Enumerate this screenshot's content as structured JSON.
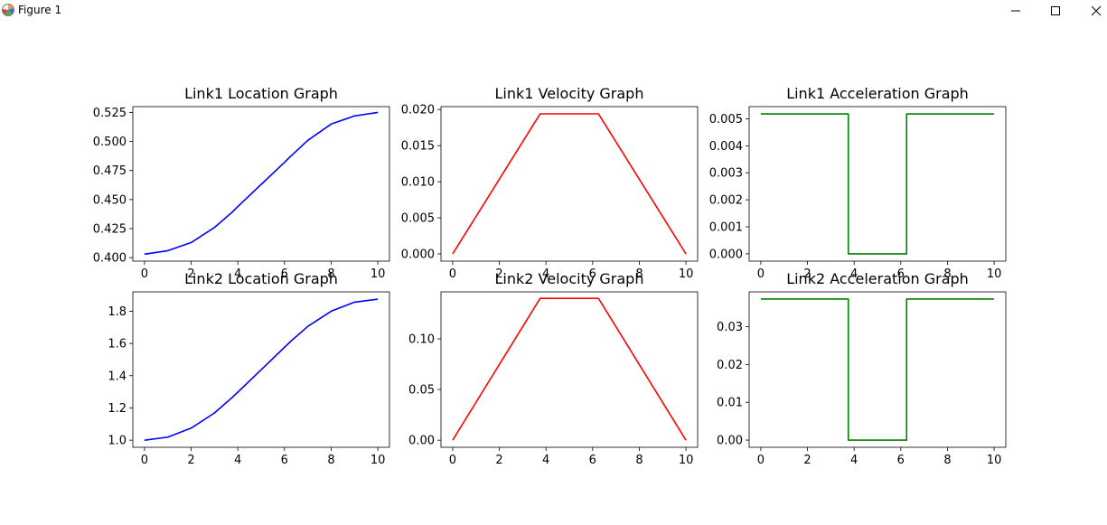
{
  "window": {
    "title": "Figure 1",
    "icons": [
      "matplotlib-icon",
      "minimize-icon",
      "maximize-icon",
      "close-icon"
    ]
  },
  "colors": {
    "blue": "#0000ff",
    "red": "#ff0000",
    "green": "#008000"
  },
  "chart_data": [
    {
      "type": "line",
      "title": "Link1 Location Graph",
      "color": "#0000ff",
      "xlim": [
        -0.5,
        10.5
      ],
      "ylim": [
        0.397,
        0.53
      ],
      "xticks": [
        0,
        2,
        4,
        6,
        8,
        10
      ],
      "yticks": [
        0.4,
        0.425,
        0.45,
        0.475,
        0.5,
        0.525
      ],
      "ytick_labels": [
        "0.400",
        "0.425",
        "0.450",
        "0.475",
        "0.500",
        "0.525"
      ],
      "x": [
        0,
        1,
        2,
        3,
        3.75,
        4,
        5,
        6,
        6.25,
        7,
        8,
        9,
        10
      ],
      "y": [
        0.403,
        0.406,
        0.413,
        0.426,
        0.439,
        0.444,
        0.463,
        0.482,
        0.487,
        0.501,
        0.515,
        0.522,
        0.525
      ]
    },
    {
      "type": "line",
      "title": "Link1 Velocity Graph",
      "color": "#ff0000",
      "xlim": [
        -0.5,
        10.5
      ],
      "ylim": [
        -0.001,
        0.0204
      ],
      "xticks": [
        0,
        2,
        4,
        6,
        8,
        10
      ],
      "yticks": [
        0.0,
        0.005,
        0.01,
        0.015,
        0.02
      ],
      "ytick_labels": [
        "0.000",
        "0.005",
        "0.010",
        "0.015",
        "0.020"
      ],
      "x": [
        0,
        3.75,
        6.25,
        10
      ],
      "y": [
        0,
        0.0194,
        0.0194,
        0
      ]
    },
    {
      "type": "line",
      "title": "Link1 Acceleration Graph",
      "color": "#008000",
      "xlim": [
        -0.5,
        10.5
      ],
      "ylim": [
        -0.00027,
        0.00545
      ],
      "xticks": [
        0,
        2,
        4,
        6,
        8,
        10
      ],
      "yticks": [
        0.0,
        0.001,
        0.002,
        0.003,
        0.004,
        0.005
      ],
      "ytick_labels": [
        "0.000",
        "0.001",
        "0.002",
        "0.003",
        "0.004",
        "0.005"
      ],
      "x": [
        0,
        3.75,
        3.75,
        6.25,
        6.25,
        10
      ],
      "y": [
        0.00518,
        0.00518,
        0,
        0,
        0.00518,
        0.00518
      ]
    },
    {
      "type": "line",
      "title": "Link2 Location Graph",
      "color": "#0000ff",
      "xlim": [
        -0.5,
        10.5
      ],
      "ylim": [
        0.956,
        1.92
      ],
      "xticks": [
        0,
        2,
        4,
        6,
        8,
        10
      ],
      "yticks": [
        1.0,
        1.2,
        1.4,
        1.6,
        1.8
      ],
      "ytick_labels": [
        "1.0",
        "1.2",
        "1.4",
        "1.6",
        "1.8"
      ],
      "x": [
        0,
        1,
        2,
        3,
        3.75,
        4,
        5,
        6,
        6.25,
        7,
        8,
        9,
        10
      ],
      "y": [
        1.0,
        1.019,
        1.075,
        1.169,
        1.264,
        1.298,
        1.437,
        1.576,
        1.611,
        1.706,
        1.8,
        1.856,
        1.875
      ]
    },
    {
      "type": "line",
      "title": "Link2 Velocity Graph",
      "color": "#ff0000",
      "xlim": [
        -0.5,
        10.5
      ],
      "ylim": [
        -0.007,
        0.1464
      ],
      "xticks": [
        0,
        2,
        4,
        6,
        8,
        10
      ],
      "yticks": [
        0.0,
        0.05,
        0.1
      ],
      "ytick_labels": [
        "0.00",
        "0.05",
        "0.10"
      ],
      "x": [
        0,
        3.75,
        6.25,
        10
      ],
      "y": [
        0,
        0.14,
        0.14,
        0
      ]
    },
    {
      "type": "line",
      "title": "Link2 Acceleration Graph",
      "color": "#008000",
      "xlim": [
        -0.5,
        10.5
      ],
      "ylim": [
        -0.0019,
        0.0392
      ],
      "xticks": [
        0,
        2,
        4,
        6,
        8,
        10
      ],
      "yticks": [
        0.0,
        0.01,
        0.02,
        0.03
      ],
      "ytick_labels": [
        "0.00",
        "0.01",
        "0.02",
        "0.03"
      ],
      "x": [
        0,
        3.75,
        3.75,
        6.25,
        6.25,
        10
      ],
      "y": [
        0.0373,
        0.0373,
        0,
        0,
        0.0373,
        0.0373
      ]
    }
  ]
}
